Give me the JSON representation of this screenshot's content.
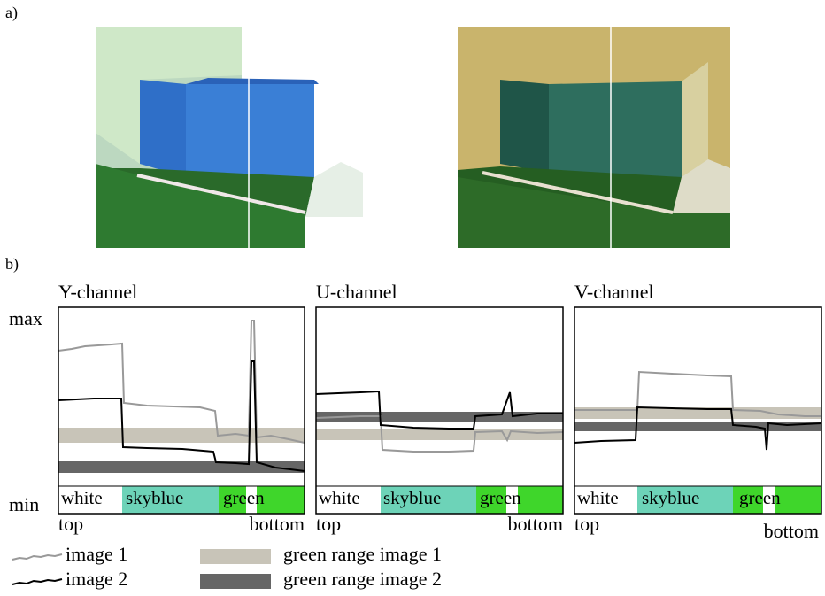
{
  "labels": {
    "a": "a)",
    "b": "b)"
  },
  "axis": {
    "max": "max",
    "min": "min"
  },
  "panels": [
    {
      "title": "Y-channel",
      "segments": [
        "white",
        "skyblue",
        "green"
      ],
      "top": "top",
      "bottom": "bottom"
    },
    {
      "title": "U-channel",
      "segments": [
        "white",
        "skyblue",
        "green"
      ],
      "top": "top",
      "bottom": "bottom"
    },
    {
      "title": "V-channel",
      "segments": [
        "white",
        "skyblue",
        "green"
      ],
      "top": "top",
      "bottom": "bottom"
    }
  ],
  "legend": [
    "image 1",
    "image 2",
    "green range image 1",
    "green range image 2"
  ]
}
